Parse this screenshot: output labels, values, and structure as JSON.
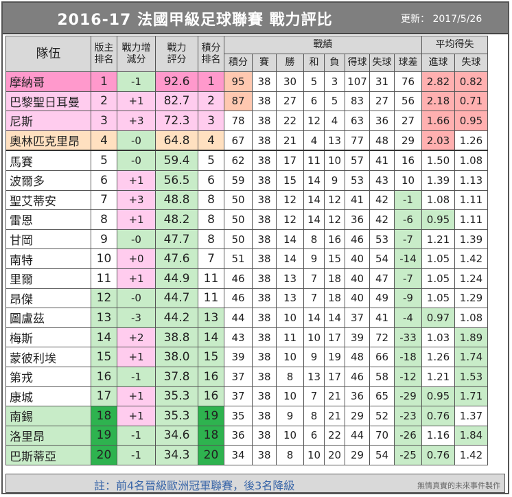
{
  "header": {
    "title": "2016-17  法國甲級足球聯賽  戰力評比",
    "update": "更新：  2017/5/26"
  },
  "columns": {
    "team": "隊伍",
    "host_rank": "版主排名",
    "power_change": "戰力增減分",
    "power_score": "戰力評分",
    "points_rank": "積分排名",
    "record": "戰績",
    "points": "積分",
    "played": "賽",
    "won": "勝",
    "drawn": "和",
    "lost": "負",
    "goals_for": "得球",
    "goals_against": "失球",
    "goal_diff": "球差",
    "avg": "平均得失",
    "avg_for": "進球",
    "avg_against": "失球"
  },
  "colors": {
    "pink": "#ff99cc",
    "light_pink": "#ffccee",
    "orange_light": "#ffe0c0",
    "green_light": "#c8ecc8",
    "green_dark": "#2eb34f",
    "red_light": "#ffb0b0",
    "salmon": "#ffc8b0"
  },
  "rows": [
    {
      "team": "摩納哥",
      "rank": "1",
      "delta": "-1",
      "score": "92.6",
      "prank": "1",
      "pts": "95",
      "p": "38",
      "w": "30",
      "d": "5",
      "l": "3",
      "gf": "107",
      "ga": "31",
      "gd": "76",
      "af": "2.82",
      "aa": "0.82"
    },
    {
      "team": "巴黎聖日耳曼",
      "rank": "2",
      "delta": "+1",
      "score": "82.7",
      "prank": "2",
      "pts": "87",
      "p": "38",
      "w": "27",
      "d": "6",
      "l": "5",
      "gf": "83",
      "ga": "27",
      "gd": "56",
      "af": "2.18",
      "aa": "0.71"
    },
    {
      "team": "尼斯",
      "rank": "3",
      "delta": "+3",
      "score": "72.3",
      "prank": "3",
      "pts": "78",
      "p": "38",
      "w": "22",
      "d": "12",
      "l": "4",
      "gf": "63",
      "ga": "36",
      "gd": "27",
      "af": "1.66",
      "aa": "0.95"
    },
    {
      "team": "奧林匹克里昂",
      "rank": "4",
      "delta": "-0",
      "score": "64.8",
      "prank": "4",
      "pts": "67",
      "p": "38",
      "w": "21",
      "d": "4",
      "l": "13",
      "gf": "77",
      "ga": "48",
      "gd": "29",
      "af": "2.03",
      "aa": "1.26"
    },
    {
      "team": "馬賽",
      "rank": "5",
      "delta": "-0",
      "score": "59.4",
      "prank": "5",
      "pts": "62",
      "p": "38",
      "w": "17",
      "d": "11",
      "l": "10",
      "gf": "57",
      "ga": "41",
      "gd": "16",
      "af": "1.50",
      "aa": "1.08"
    },
    {
      "team": "波爾多",
      "rank": "6",
      "delta": "+1",
      "score": "56.5",
      "prank": "6",
      "pts": "59",
      "p": "38",
      "w": "15",
      "d": "14",
      "l": "9",
      "gf": "53",
      "ga": "43",
      "gd": "10",
      "af": "1.39",
      "aa": "1.13"
    },
    {
      "team": "聖艾蒂安",
      "rank": "7",
      "delta": "+3",
      "score": "48.8",
      "prank": "8",
      "pts": "50",
      "p": "38",
      "w": "12",
      "d": "14",
      "l": "12",
      "gf": "41",
      "ga": "42",
      "gd": "-1",
      "af": "1.08",
      "aa": "1.11"
    },
    {
      "team": "雷恩",
      "rank": "8",
      "delta": "+1",
      "score": "48.2",
      "prank": "8",
      "pts": "50",
      "p": "38",
      "w": "12",
      "d": "14",
      "l": "12",
      "gf": "36",
      "ga": "42",
      "gd": "-6",
      "af": "0.95",
      "aa": "1.11"
    },
    {
      "team": "甘岡",
      "rank": "9",
      "delta": "-0",
      "score": "47.7",
      "prank": "8",
      "pts": "50",
      "p": "38",
      "w": "14",
      "d": "8",
      "l": "16",
      "gf": "46",
      "ga": "53",
      "gd": "-7",
      "af": "1.21",
      "aa": "1.39"
    },
    {
      "team": "南特",
      "rank": "10",
      "delta": "+0",
      "score": "47.6",
      "prank": "7",
      "pts": "51",
      "p": "38",
      "w": "14",
      "d": "9",
      "l": "15",
      "gf": "40",
      "ga": "54",
      "gd": "-14",
      "af": "1.05",
      "aa": "1.42"
    },
    {
      "team": "里爾",
      "rank": "11",
      "delta": "+1",
      "score": "44.9",
      "prank": "11",
      "pts": "46",
      "p": "38",
      "w": "13",
      "d": "7",
      "l": "18",
      "gf": "40",
      "ga": "47",
      "gd": "-7",
      "af": "1.05",
      "aa": "1.24"
    },
    {
      "team": "昂傑",
      "rank": "12",
      "delta": "-0",
      "score": "44.7",
      "prank": "11",
      "pts": "46",
      "p": "38",
      "w": "13",
      "d": "7",
      "l": "18",
      "gf": "40",
      "ga": "49",
      "gd": "-9",
      "af": "1.05",
      "aa": "1.29"
    },
    {
      "team": "圖盧茲",
      "rank": "13",
      "delta": "-3",
      "score": "44.2",
      "prank": "13",
      "pts": "44",
      "p": "38",
      "w": "10",
      "d": "14",
      "l": "14",
      "gf": "37",
      "ga": "41",
      "gd": "-4",
      "af": "0.97",
      "aa": "1.08"
    },
    {
      "team": "梅斯",
      "rank": "14",
      "delta": "+2",
      "score": "38.8",
      "prank": "14",
      "pts": "43",
      "p": "38",
      "w": "11",
      "d": "10",
      "l": "17",
      "gf": "39",
      "ga": "72",
      "gd": "-33",
      "af": "1.03",
      "aa": "1.89"
    },
    {
      "team": "蒙彼利埃",
      "rank": "15",
      "delta": "+1",
      "score": "38.0",
      "prank": "15",
      "pts": "39",
      "p": "38",
      "w": "10",
      "d": "9",
      "l": "19",
      "gf": "48",
      "ga": "66",
      "gd": "-18",
      "af": "1.26",
      "aa": "1.74"
    },
    {
      "team": "第戎",
      "rank": "16",
      "delta": "-1",
      "score": "37.8",
      "prank": "16",
      "pts": "37",
      "p": "38",
      "w": "8",
      "d": "13",
      "l": "17",
      "gf": "46",
      "ga": "58",
      "gd": "-12",
      "af": "1.21",
      "aa": "1.53"
    },
    {
      "team": "康城",
      "rank": "17",
      "delta": "+1",
      "score": "35.3",
      "prank": "16",
      "pts": "37",
      "p": "38",
      "w": "10",
      "d": "7",
      "l": "21",
      "gf": "36",
      "ga": "65",
      "gd": "-29",
      "af": "0.95",
      "aa": "1.71"
    },
    {
      "team": "南錫",
      "rank": "18",
      "delta": "+1",
      "score": "35.3",
      "prank": "19",
      "pts": "35",
      "p": "38",
      "w": "9",
      "d": "8",
      "l": "21",
      "gf": "29",
      "ga": "52",
      "gd": "-23",
      "af": "0.76",
      "aa": "1.37"
    },
    {
      "team": "洛里昂",
      "rank": "19",
      "delta": "-1",
      "score": "34.6",
      "prank": "18",
      "pts": "36",
      "p": "38",
      "w": "10",
      "d": "6",
      "l": "22",
      "gf": "44",
      "ga": "70",
      "gd": "-26",
      "af": "1.16",
      "aa": "1.84"
    },
    {
      "team": "巴斯蒂亞",
      "rank": "20",
      "delta": "-1",
      "score": "34.3",
      "prank": "20",
      "pts": "34",
      "p": "38",
      "w": "8",
      "d": "10",
      "l": "20",
      "gf": "29",
      "ga": "54",
      "gd": "-25",
      "af": "0.76",
      "aa": "1.42"
    }
  ],
  "footer": {
    "note": "註：前4名晉級歐洲冠軍聯賽，後3名降級",
    "credit": "無情真實的未來事件製作"
  }
}
